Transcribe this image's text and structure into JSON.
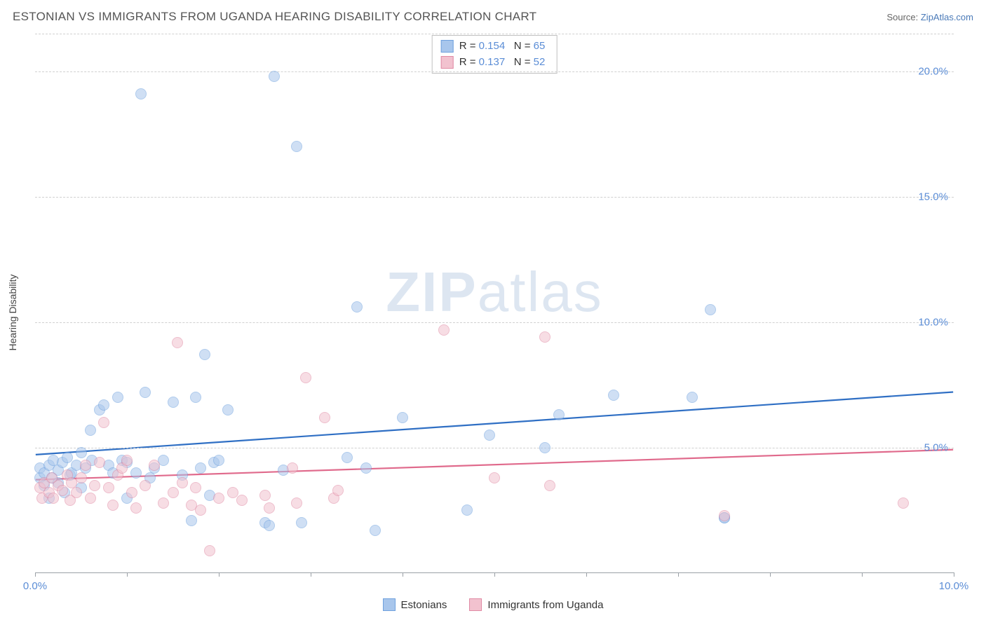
{
  "title": "ESTONIAN VS IMMIGRANTS FROM UGANDA HEARING DISABILITY CORRELATION CHART",
  "source_prefix": "Source: ",
  "source_name": "ZipAtlas.com",
  "y_axis_label": "Hearing Disability",
  "watermark_bold": "ZIP",
  "watermark_rest": "atlas",
  "chart": {
    "type": "scatter",
    "xlim": [
      0,
      10
    ],
    "ylim": [
      0,
      21.5
    ],
    "x_ticks": [
      0,
      1,
      2,
      3,
      4,
      5,
      6,
      7,
      8,
      9,
      10
    ],
    "x_tick_labels": {
      "0": "0.0%",
      "10": "10.0%"
    },
    "y_gridlines": [
      5,
      10,
      15,
      20,
      21.5
    ],
    "y_tick_labels": {
      "5": "5.0%",
      "10": "10.0%",
      "15": "15.0%",
      "20": "20.0%"
    },
    "background_color": "#ffffff",
    "grid_color": "#d0d0d0",
    "axis_color": "#9aa0a6",
    "tick_label_color": "#5b8dd6",
    "marker_radius": 8,
    "marker_opacity": 0.55,
    "trend_line_width": 2.2
  },
  "series": [
    {
      "name": "Estonians",
      "color_fill": "#a8c6ec",
      "color_stroke": "#6fa1de",
      "trend_color": "#2f6fc4",
      "stats": {
        "R_label": "R =",
        "R": "0.154",
        "N_label": "N =",
        "N": "65"
      },
      "trend": {
        "y_at_x0": 4.7,
        "y_at_x10": 7.2
      },
      "points": [
        [
          0.05,
          3.8
        ],
        [
          0.05,
          4.2
        ],
        [
          0.1,
          3.5
        ],
        [
          0.1,
          4.0
        ],
        [
          0.15,
          4.3
        ],
        [
          0.15,
          3.0
        ],
        [
          0.18,
          3.8
        ],
        [
          0.2,
          4.5
        ],
        [
          0.25,
          3.6
        ],
        [
          0.25,
          4.1
        ],
        [
          0.3,
          4.4
        ],
        [
          0.32,
          3.2
        ],
        [
          0.35,
          4.6
        ],
        [
          0.38,
          3.9
        ],
        [
          0.4,
          4.0
        ],
        [
          0.45,
          4.3
        ],
        [
          0.5,
          4.8
        ],
        [
          0.5,
          3.4
        ],
        [
          0.55,
          4.2
        ],
        [
          0.6,
          5.7
        ],
        [
          0.62,
          4.5
        ],
        [
          0.7,
          6.5
        ],
        [
          0.75,
          6.7
        ],
        [
          0.8,
          4.3
        ],
        [
          0.85,
          4.0
        ],
        [
          0.9,
          7.0
        ],
        [
          0.95,
          4.5
        ],
        [
          1.0,
          3.0
        ],
        [
          1.0,
          4.4
        ],
        [
          1.1,
          4.0
        ],
        [
          1.15,
          19.1
        ],
        [
          1.2,
          7.2
        ],
        [
          1.25,
          3.8
        ],
        [
          1.3,
          4.2
        ],
        [
          1.4,
          4.5
        ],
        [
          1.5,
          6.8
        ],
        [
          1.6,
          3.9
        ],
        [
          1.7,
          2.1
        ],
        [
          1.75,
          7.0
        ],
        [
          1.8,
          4.2
        ],
        [
          1.85,
          8.7
        ],
        [
          1.9,
          3.1
        ],
        [
          1.95,
          4.4
        ],
        [
          2.0,
          4.5
        ],
        [
          2.1,
          6.5
        ],
        [
          2.5,
          2.0
        ],
        [
          2.55,
          1.9
        ],
        [
          2.6,
          19.8
        ],
        [
          2.7,
          4.1
        ],
        [
          2.85,
          17.0
        ],
        [
          2.9,
          2.0
        ],
        [
          3.4,
          4.6
        ],
        [
          3.5,
          10.6
        ],
        [
          3.6,
          4.2
        ],
        [
          3.7,
          1.7
        ],
        [
          4.0,
          6.2
        ],
        [
          4.7,
          2.5
        ],
        [
          4.95,
          5.5
        ],
        [
          5.55,
          5.0
        ],
        [
          5.7,
          6.3
        ],
        [
          6.3,
          7.1
        ],
        [
          7.15,
          7.0
        ],
        [
          7.35,
          10.5
        ],
        [
          7.5,
          2.2
        ],
        [
          7.5,
          2.2
        ]
      ]
    },
    {
      "name": "Immigrants from Uganda",
      "color_fill": "#f2c2cf",
      "color_stroke": "#e08aa4",
      "trend_color": "#e06a8c",
      "stats": {
        "R_label": "R =",
        "R": "0.137",
        "N_label": "N =",
        "N": "52"
      },
      "trend": {
        "y_at_x0": 3.7,
        "y_at_x10": 4.9
      },
      "points": [
        [
          0.05,
          3.4
        ],
        [
          0.08,
          3.0
        ],
        [
          0.1,
          3.6
        ],
        [
          0.15,
          3.2
        ],
        [
          0.18,
          3.8
        ],
        [
          0.2,
          3.0
        ],
        [
          0.25,
          3.5
        ],
        [
          0.3,
          3.3
        ],
        [
          0.35,
          3.9
        ],
        [
          0.38,
          2.9
        ],
        [
          0.4,
          3.6
        ],
        [
          0.45,
          3.2
        ],
        [
          0.5,
          3.8
        ],
        [
          0.55,
          4.3
        ],
        [
          0.6,
          3.0
        ],
        [
          0.65,
          3.5
        ],
        [
          0.7,
          4.4
        ],
        [
          0.75,
          6.0
        ],
        [
          0.8,
          3.4
        ],
        [
          0.85,
          2.7
        ],
        [
          0.9,
          3.9
        ],
        [
          0.95,
          4.2
        ],
        [
          1.0,
          4.5
        ],
        [
          1.05,
          3.2
        ],
        [
          1.1,
          2.6
        ],
        [
          1.2,
          3.5
        ],
        [
          1.3,
          4.3
        ],
        [
          1.4,
          2.8
        ],
        [
          1.5,
          3.2
        ],
        [
          1.55,
          9.2
        ],
        [
          1.6,
          3.6
        ],
        [
          1.7,
          2.7
        ],
        [
          1.75,
          3.4
        ],
        [
          1.8,
          2.5
        ],
        [
          1.9,
          0.9
        ],
        [
          2.0,
          3.0
        ],
        [
          2.15,
          3.2
        ],
        [
          2.25,
          2.9
        ],
        [
          2.5,
          3.1
        ],
        [
          2.55,
          2.6
        ],
        [
          2.8,
          4.2
        ],
        [
          2.85,
          2.8
        ],
        [
          2.95,
          7.8
        ],
        [
          3.15,
          6.2
        ],
        [
          3.25,
          3.0
        ],
        [
          3.3,
          3.3
        ],
        [
          4.45,
          9.7
        ],
        [
          5.0,
          3.8
        ],
        [
          5.55,
          9.4
        ],
        [
          5.6,
          3.5
        ],
        [
          7.5,
          2.3
        ],
        [
          9.45,
          2.8
        ]
      ]
    }
  ]
}
